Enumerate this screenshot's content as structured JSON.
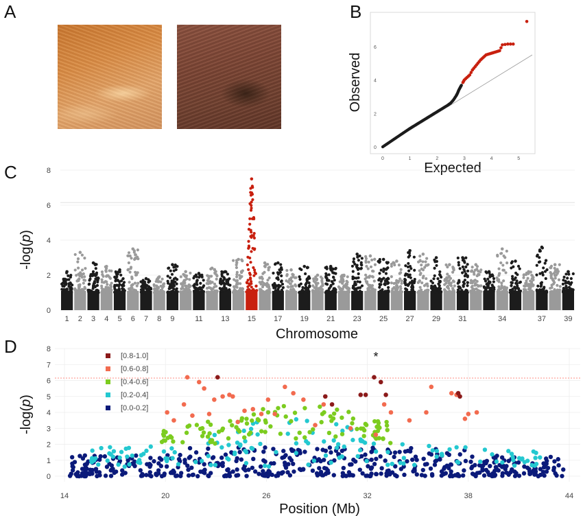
{
  "panels": {
    "a": "A",
    "b": "B",
    "c": "C",
    "d": "D"
  },
  "colors": {
    "black_points": "#1c1c1c",
    "grey_points": "#9a9a9a",
    "highlight_red": "#c8200f",
    "threshold_line": "#ff8c80",
    "ld": [
      "#8b1a1a",
      "#f26b4f",
      "#7ccc1f",
      "#24c8d0",
      "#0b1a7a"
    ]
  },
  "images": [
    {
      "name": "light-coat-fur",
      "description_color": "#d89560"
    },
    {
      "name": "dark-coat-fur",
      "description_color": "#6e4030"
    }
  ],
  "chart_data": [
    {
      "type": "scatter",
      "panel": "B",
      "xlabel": "Expected",
      "ylabel": "Observed",
      "xlim": [
        0,
        5.5
      ],
      "ylim": [
        0,
        7.8
      ],
      "x_ticks": [
        "0",
        "1",
        "2",
        "3",
        "4",
        "5"
      ],
      "y_ticks": [
        "0",
        "2",
        "4",
        "6"
      ],
      "diagonal": true,
      "series": [
        {
          "x": [
            0,
            0.2,
            0.4,
            0.6,
            0.8,
            1.0,
            1.2,
            1.4,
            1.6,
            1.8,
            2.0,
            2.2,
            2.4,
            2.5,
            2.6,
            2.7,
            2.75,
            2.8,
            2.85,
            2.9
          ],
          "y": [
            0,
            0.22,
            0.44,
            0.66,
            0.88,
            1.1,
            1.3,
            1.5,
            1.7,
            1.9,
            2.1,
            2.3,
            2.5,
            2.62,
            2.8,
            3.05,
            3.2,
            3.4,
            3.55,
            3.7
          ]
        },
        {
          "x": [
            2.95,
            3.0,
            3.1,
            3.2,
            3.3,
            3.4,
            3.5,
            3.6,
            3.7,
            3.8,
            3.9,
            4.0,
            4.1,
            4.2,
            4.3,
            4.4,
            4.6,
            4.8,
            5.3
          ],
          "y": [
            3.85,
            4.0,
            4.15,
            4.3,
            4.6,
            4.8,
            5.0,
            5.2,
            5.35,
            5.5,
            5.55,
            5.6,
            5.65,
            5.7,
            5.75,
            6.1,
            6.15,
            6.15,
            7.5
          ]
        }
      ]
    },
    {
      "type": "scatter",
      "panel": "C",
      "xlabel": "Chromosome",
      "ylabel": "-log(p)",
      "ylim": [
        0,
        8
      ],
      "y_ticks": [
        "0",
        "2",
        "4",
        "6",
        "8"
      ],
      "threshold": 6.15,
      "x_tick_labels": [
        "1",
        "2",
        "3",
        "4",
        "5",
        "6",
        "7",
        "8",
        "9",
        "11",
        "13",
        "15",
        "17",
        "19",
        "21",
        "23",
        "25",
        "27",
        "29",
        "31",
        "34",
        "37",
        "39"
      ],
      "chromosome_peaks": [
        {
          "chr": "1",
          "peak": 2.2
        },
        {
          "chr": "2",
          "peak": 3.3
        },
        {
          "chr": "3",
          "peak": 2.7
        },
        {
          "chr": "4",
          "peak": 2.5
        },
        {
          "chr": "5",
          "peak": 2.3
        },
        {
          "chr": "6",
          "peak": 3.5
        },
        {
          "chr": "7",
          "peak": 1.8
        },
        {
          "chr": "8",
          "peak": 1.9
        },
        {
          "chr": "9",
          "peak": 2.6
        },
        {
          "chr": "10",
          "peak": 2.2
        },
        {
          "chr": "11",
          "peak": 2.1
        },
        {
          "chr": "12",
          "peak": 2.4
        },
        {
          "chr": "13",
          "peak": 2.2
        },
        {
          "chr": "14",
          "peak": 2.9
        },
        {
          "chr": "15",
          "peak": 7.5
        },
        {
          "chr": "16",
          "peak": 2.7
        },
        {
          "chr": "17",
          "peak": 2.7
        },
        {
          "chr": "18",
          "peak": 2.3
        },
        {
          "chr": "19",
          "peak": 2.5
        },
        {
          "chr": "20",
          "peak": 2.0
        },
        {
          "chr": "21",
          "peak": 2.5
        },
        {
          "chr": "22",
          "peak": 2.0
        },
        {
          "chr": "23",
          "peak": 3.2
        },
        {
          "chr": "24",
          "peak": 3.1
        },
        {
          "chr": "25",
          "peak": 2.9
        },
        {
          "chr": "26",
          "peak": 2.8
        },
        {
          "chr": "27",
          "peak": 3.4
        },
        {
          "chr": "28",
          "peak": 3.2
        },
        {
          "chr": "29",
          "peak": 3.0
        },
        {
          "chr": "30",
          "peak": 2.6
        },
        {
          "chr": "31",
          "peak": 3.0
        },
        {
          "chr": "32",
          "peak": 2.6
        },
        {
          "chr": "33",
          "peak": 2.2
        },
        {
          "chr": "34",
          "peak": 3.5
        },
        {
          "chr": "35",
          "peak": 2.8
        },
        {
          "chr": "36",
          "peak": 2.2
        },
        {
          "chr": "37",
          "peak": 3.6
        },
        {
          "chr": "38",
          "peak": 2.6
        },
        {
          "chr": "39",
          "peak": 2.2
        }
      ]
    },
    {
      "type": "scatter",
      "panel": "D",
      "xlabel": "Position (Mb)",
      "ylabel": "-log(p)",
      "xlim": [
        14,
        44
      ],
      "ylim": [
        0,
        8
      ],
      "x_ticks": [
        "14",
        "20",
        "26",
        "32",
        "38",
        "44"
      ],
      "y_ticks": [
        "0",
        "1",
        "2",
        "3",
        "4",
        "5",
        "6",
        "7",
        "8"
      ],
      "threshold": 6.15,
      "annotation": "*",
      "legend": {
        "placement": "top-left",
        "entries": [
          "[0.8-1.0]",
          "[0.6-0.8]",
          "[0.4-0.6]",
          "[0.2-0.4]",
          "[0.0-0.2]"
        ]
      },
      "series": [
        {
          "name": "[0.8-1.0]",
          "x": [
            23.1,
            29.5,
            29.9,
            31.6,
            31.9,
            32.4,
            32.8,
            33.1,
            37.4,
            37.5
          ],
          "y": [
            6.2,
            5.0,
            4.5,
            5.1,
            5.1,
            6.2,
            5.9,
            5.1,
            5.2,
            5.0
          ]
        },
        {
          "name": "[0.6-0.8]",
          "x": [
            20.1,
            20.5,
            21.1,
            21.3,
            21.6,
            22.0,
            22.3,
            22.6,
            22.9,
            23.4,
            23.8,
            24.0,
            24.3,
            24.7,
            25.2,
            25.7,
            26.1,
            26.5,
            27.1,
            27.6,
            28.2,
            28.9,
            29.4,
            31.0,
            32.5,
            33.0,
            33.4,
            34.5,
            35.5,
            35.8,
            37.0,
            37.3,
            37.8,
            38.0,
            38.5
          ],
          "y": [
            4.0,
            3.5,
            4.5,
            6.2,
            3.8,
            5.9,
            5.5,
            3.9,
            4.8,
            5.0,
            5.1,
            5.0,
            3.4,
            4.1,
            4.2,
            3.9,
            4.8,
            3.9,
            5.6,
            5.2,
            4.8,
            3.2,
            4.5,
            3.0,
            2.6,
            4.5,
            4.0,
            3.5,
            4.0,
            5.6,
            5.2,
            5.1,
            3.6,
            3.9,
            4.0
          ]
        }
      ]
    }
  ]
}
